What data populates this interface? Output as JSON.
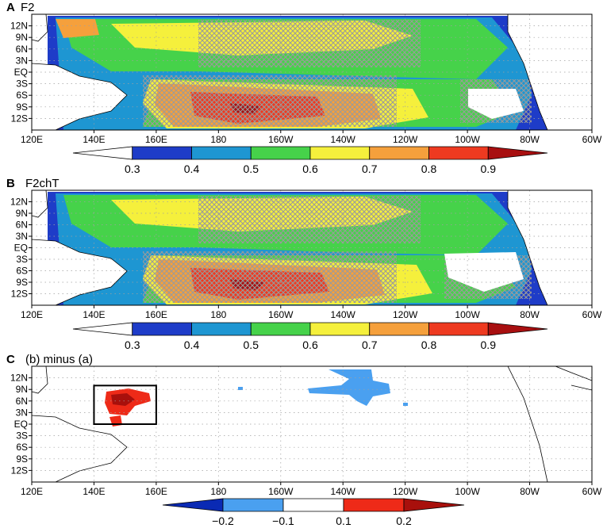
{
  "chart_data": [
    {
      "type": "heatmap",
      "panel": "A",
      "title": "F2",
      "x_ticks": [
        "120E",
        "140E",
        "160E",
        "180",
        "160W",
        "140W",
        "120W",
        "100W",
        "80W",
        "60W"
      ],
      "y_ticks": [
        "12N",
        "9N",
        "6N",
        "3N",
        "EQ",
        "3S",
        "6S",
        "9S",
        "12S"
      ],
      "xlim": [
        120,
        300
      ],
      "ylim": [
        -15,
        15
      ],
      "grid": true,
      "colorbar": {
        "labels": [
          "0.3",
          "0.4",
          "0.5",
          "0.6",
          "0.7",
          "0.8",
          "0.9"
        ],
        "colors": [
          "#ffffff",
          "#1e3cc8",
          "#1e96d2",
          "#46d24a",
          "#f5f03c",
          "#f5a03c",
          "#ee3a20",
          "#a80f10"
        ]
      },
      "regions": [
        {
          "level": 0.4,
          "lon": [
            125,
            290
          ],
          "lat": [
            -14,
            14
          ]
        },
        {
          "level": 0.5,
          "lon": [
            140,
            280
          ],
          "lat": [
            -13,
            13
          ]
        },
        {
          "level": 0.6,
          "lon": [
            150,
            260
          ],
          "lat": [
            -12,
            8
          ]
        },
        {
          "level": 0.7,
          "lon": [
            160,
            220
          ],
          "lat": [
            -13,
            -2
          ]
        },
        {
          "level": 0.8,
          "lon": [
            168,
            210
          ],
          "lat": [
            -12,
            -5
          ]
        },
        {
          "level": 0.9,
          "lon": [
            175,
            195
          ],
          "lat": [
            -11,
            -7
          ]
        }
      ]
    },
    {
      "type": "heatmap",
      "panel": "B",
      "title": "F2chT",
      "x_ticks": [
        "120E",
        "140E",
        "160E",
        "180",
        "160W",
        "140W",
        "120W",
        "100W",
        "80W",
        "60W"
      ],
      "y_ticks": [
        "12N",
        "9N",
        "6N",
        "3N",
        "EQ",
        "3S",
        "6S",
        "9S",
        "12S"
      ],
      "xlim": [
        120,
        300
      ],
      "ylim": [
        -15,
        15
      ],
      "grid": true,
      "colorbar": {
        "labels": [
          "0.3",
          "0.4",
          "0.5",
          "0.6",
          "0.7",
          "0.8",
          "0.9"
        ],
        "colors": [
          "#ffffff",
          "#1e3cc8",
          "#1e96d2",
          "#46d24a",
          "#f5f03c",
          "#f5a03c",
          "#ee3a20",
          "#a80f10"
        ]
      },
      "regions": [
        {
          "level": 0.4,
          "lon": [
            125,
            290
          ],
          "lat": [
            -14,
            14
          ]
        },
        {
          "level": 0.5,
          "lon": [
            140,
            280
          ],
          "lat": [
            -13,
            13
          ]
        },
        {
          "level": 0.6,
          "lon": [
            150,
            260
          ],
          "lat": [
            -12,
            8
          ]
        },
        {
          "level": 0.7,
          "lon": [
            160,
            222
          ],
          "lat": [
            -13,
            -2
          ]
        },
        {
          "level": 0.8,
          "lon": [
            170,
            212
          ],
          "lat": [
            -12,
            -5
          ]
        },
        {
          "level": 0.9,
          "lon": [
            176,
            198
          ],
          "lat": [
            -11,
            -7
          ]
        }
      ]
    },
    {
      "type": "heatmap",
      "panel": "C",
      "title": "(b) minus (a)",
      "x_ticks": [
        "120E",
        "140E",
        "160E",
        "180",
        "160W",
        "140W",
        "120W",
        "100W",
        "80W",
        "60W"
      ],
      "y_ticks": [
        "12N",
        "9N",
        "6N",
        "3N",
        "EQ",
        "3S",
        "6S",
        "9S",
        "12S"
      ],
      "xlim": [
        120,
        300
      ],
      "ylim": [
        -15,
        15
      ],
      "grid": true,
      "colorbar": {
        "labels": [
          "−0.2",
          "−0.1",
          "0.1",
          "0.2"
        ],
        "colors": [
          "#0a2ab4",
          "#4aa0f0",
          "#ffffff",
          "#ee2a18",
          "#a8100c"
        ]
      },
      "box": {
        "lon": [
          140,
          160
        ],
        "lat": [
          0,
          10
        ]
      },
      "regions": [
        {
          "level": 0.2,
          "lon": [
            144,
            157
          ],
          "lat": [
            4,
            9
          ]
        },
        {
          "level": 0.1,
          "lon": [
            145,
            155
          ],
          "lat": [
            -1,
            2
          ]
        },
        {
          "level": -0.1,
          "lon": [
            213,
            232
          ],
          "lat": [
            5,
            11
          ]
        }
      ]
    }
  ]
}
